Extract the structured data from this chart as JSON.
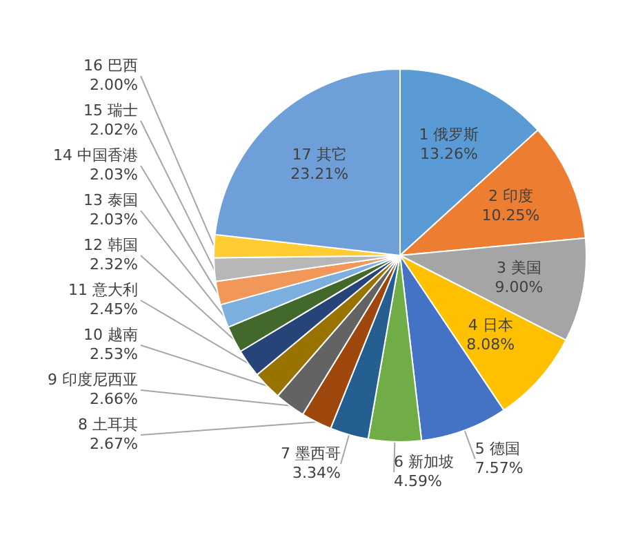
{
  "chart_data": {
    "type": "pie",
    "categories": [
      "1 俄罗斯",
      "2 印度",
      "3 美国",
      "4 日本",
      "5 德国",
      "6 新加坡",
      "7 墨西哥",
      "8 土耳其",
      "9 印度尼西亚",
      "10 越南",
      "11 意大利",
      "12 韩国",
      "13 泰国",
      "14 中国香港",
      "15 瑞士",
      "16 巴西",
      "17 其它"
    ],
    "values": [
      13.26,
      10.25,
      9.0,
      8.08,
      7.57,
      4.59,
      3.34,
      2.67,
      2.66,
      2.53,
      2.45,
      2.32,
      2.03,
      2.03,
      2.02,
      2.0,
      23.21
    ],
    "value_labels": [
      "13.26%",
      "10.25%",
      "9.00%",
      "8.08%",
      "7.57%",
      "4.59%",
      "3.34%",
      "2.67%",
      "2.66%",
      "2.53%",
      "2.45%",
      "2.32%",
      "2.03%",
      "2.03%",
      "2.02%",
      "2.00%",
      "23.21%"
    ],
    "colors": [
      "#5b9bd5",
      "#ed7d31",
      "#a5a5a5",
      "#ffc000",
      "#4472c4",
      "#70ad47",
      "#255e91",
      "#9e480e",
      "#636363",
      "#997300",
      "#264478",
      "#43682b",
      "#7cafdd",
      "#f1975a",
      "#b7b7b7",
      "#ffcd33",
      "#6f9fd8"
    ]
  }
}
